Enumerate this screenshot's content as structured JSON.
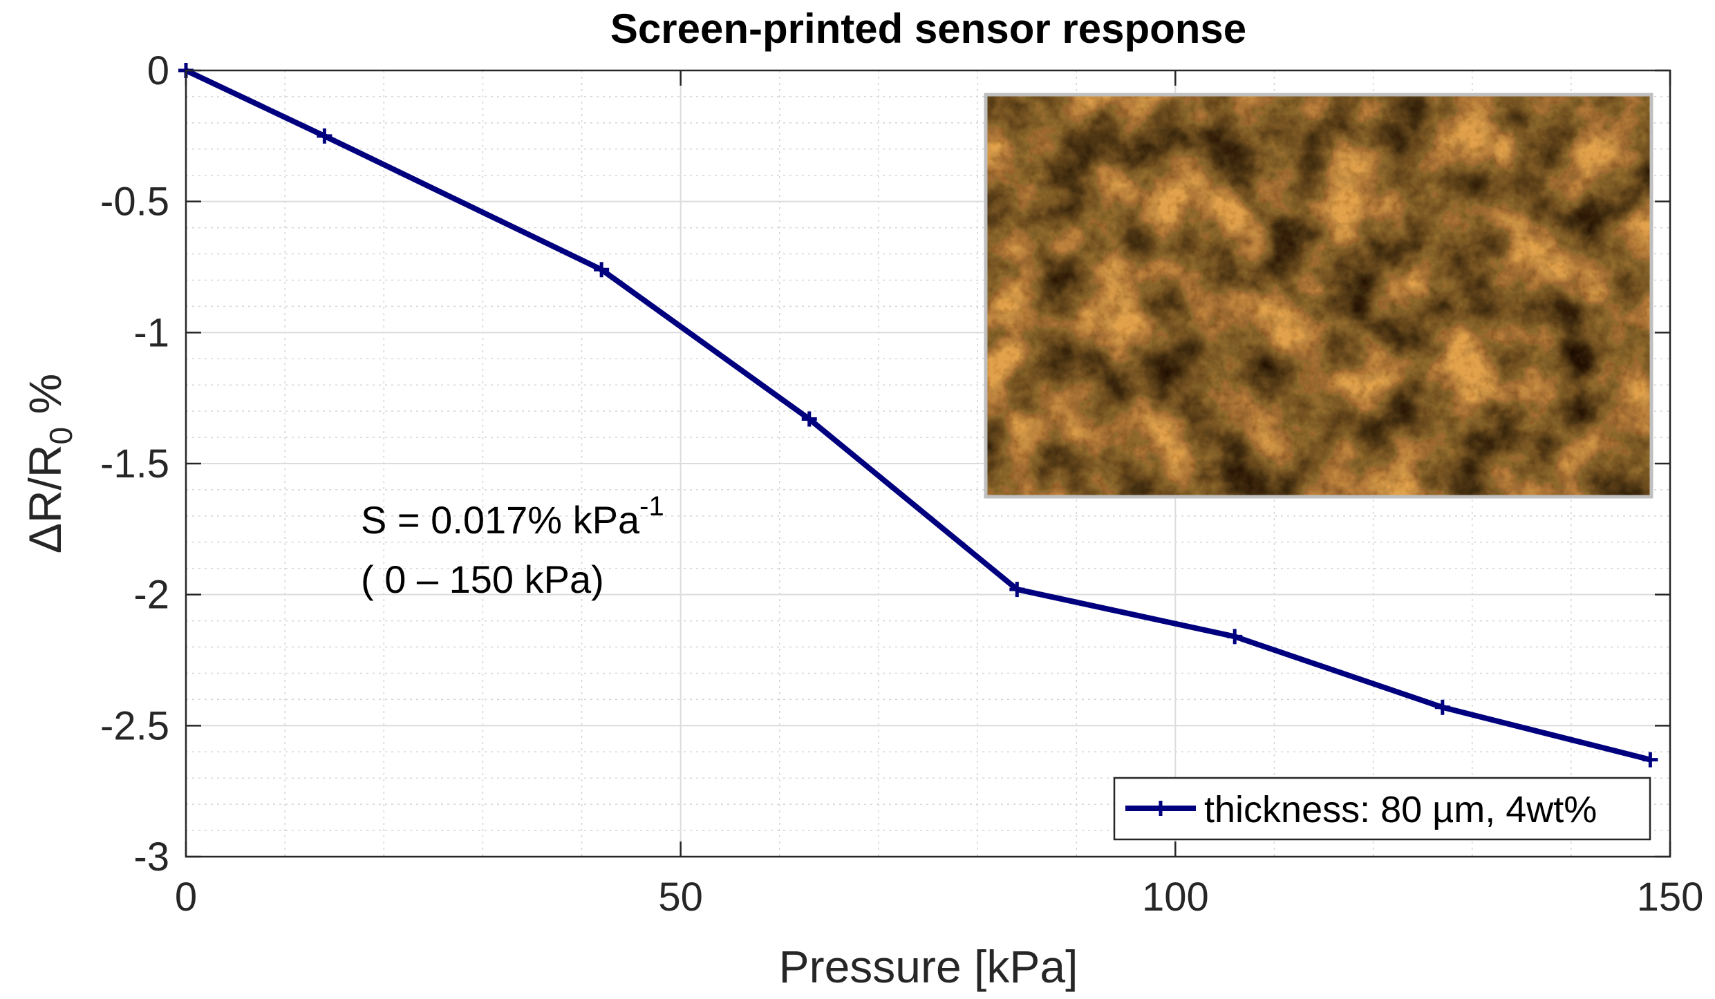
{
  "chart_data": {
    "type": "line",
    "title": "Screen-printed sensor response",
    "xlabel": "Pressure [kPa]",
    "ylabel": {
      "main": "ΔR/R",
      "subscript": "0",
      "suffix": " %"
    },
    "xlim": [
      0,
      150
    ],
    "ylim": [
      -3,
      0
    ],
    "x_ticks": [
      0,
      50,
      100,
      150
    ],
    "x_tick_labels": [
      "0",
      "50",
      "100",
      "150"
    ],
    "y_ticks": [
      0,
      -0.5,
      -1,
      -1.5,
      -2,
      -2.5,
      -3
    ],
    "y_tick_labels": [
      "0",
      "-0.5",
      "-1",
      "-1.5",
      "-2",
      "-2.5",
      "-3"
    ],
    "grid": true,
    "minor_grid": true,
    "legend_position": "bottom-right",
    "series": [
      {
        "name": "thickness: 80 µm, 4wt%",
        "color": "#00007f",
        "marker": "plus",
        "x": [
          0,
          14,
          42,
          63,
          84,
          106,
          127,
          148
        ],
        "y": [
          0,
          -0.25,
          -0.76,
          -1.33,
          -1.98,
          -2.16,
          -2.43,
          -2.63
        ]
      }
    ],
    "annotation": {
      "line1_main": "S = 0.017% kPa",
      "line1_superscript": "-1",
      "line2": "( 0 – 150 kPa)"
    },
    "inset_image": {
      "description_icon": "micrograph-image",
      "colors": {
        "light": "#e2a24c",
        "mid": "#a8691f",
        "dark": "#1c1006",
        "border": "#bfbfbf"
      }
    }
  }
}
